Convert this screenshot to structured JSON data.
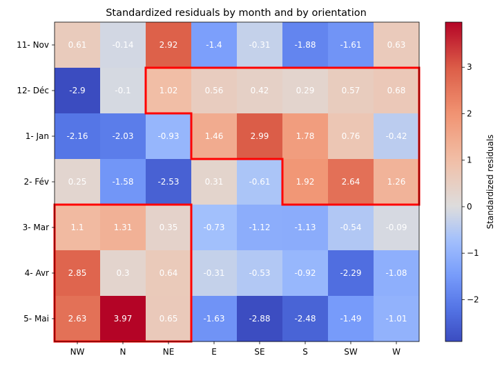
{
  "chart_data": {
    "type": "heatmap",
    "title": "Standardized residuals by month and by orientation",
    "x_categories": [
      "NW",
      "N",
      "NE",
      "E",
      "SE",
      "S",
      "SW",
      "W"
    ],
    "y_categories": [
      "11- Nov",
      "12- Déc",
      "1- Jan",
      "2- Fév",
      "3- Mar",
      "4- Avr",
      "5- Mai"
    ],
    "values": [
      [
        0.61,
        -0.14,
        2.92,
        -1.4,
        -0.31,
        -1.88,
        -1.61,
        0.63
      ],
      [
        -2.9,
        -0.1,
        1.02,
        0.56,
        0.42,
        0.29,
        0.57,
        0.68
      ],
      [
        -2.16,
        -2.03,
        -0.93,
        1.46,
        2.99,
        1.78,
        0.76,
        -0.42
      ],
      [
        0.25,
        -1.58,
        -2.53,
        0.31,
        -0.61,
        1.92,
        2.64,
        1.26
      ],
      [
        1.1,
        1.31,
        0.35,
        -0.73,
        -1.12,
        -1.13,
        -0.54,
        -0.09
      ],
      [
        2.85,
        0.3,
        0.64,
        -0.31,
        -0.53,
        -0.92,
        -2.29,
        -1.08
      ],
      [
        2.63,
        3.97,
        0.65,
        -1.63,
        -2.88,
        -2.48,
        -1.49,
        -1.01
      ]
    ],
    "colormap": "coolwarm",
    "vmin": -2.9,
    "vmax": 3.97,
    "colorbar": {
      "label": "Standardized residuals",
      "ticks": [
        -2,
        -1,
        0,
        1,
        2,
        3
      ]
    },
    "highlight_regions": [
      {
        "name": "winter-cluster",
        "color": "#ff0000",
        "cells": [
          [
            1,
            2
          ],
          [
            1,
            3
          ],
          [
            1,
            4
          ],
          [
            1,
            5
          ],
          [
            1,
            6
          ],
          [
            1,
            7
          ],
          [
            2,
            3
          ],
          [
            2,
            4
          ],
          [
            2,
            5
          ],
          [
            2,
            6
          ],
          [
            2,
            7
          ],
          [
            3,
            5
          ],
          [
            3,
            6
          ],
          [
            3,
            7
          ]
        ]
      },
      {
        "name": "spring-cluster",
        "color": "#ff0000",
        "cells": [
          [
            4,
            0
          ],
          [
            4,
            1
          ],
          [
            4,
            2
          ],
          [
            5,
            0
          ],
          [
            5,
            1
          ],
          [
            5,
            2
          ],
          [
            6,
            0
          ],
          [
            6,
            1
          ],
          [
            6,
            2
          ]
        ]
      }
    ]
  }
}
